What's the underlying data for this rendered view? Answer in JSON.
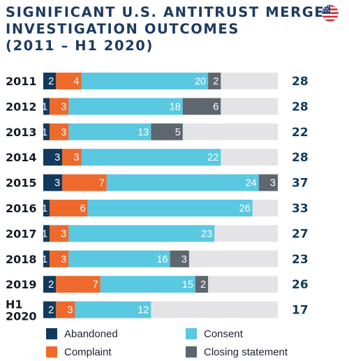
{
  "header": {
    "title_lines": [
      "SIGNIFICANT U.S. ANTITRUST MERGER",
      "INVESTIGATION OUTCOMES",
      "(2011 – H1 2020)"
    ],
    "flag_icon": "us-flag-icon"
  },
  "colors": {
    "abandoned": "#123a5c",
    "complaint": "#ee6a2c",
    "consent": "#5bc8e2",
    "closing": "#5e6670",
    "track": "#e4e4e6",
    "total_text": "#123a5c"
  },
  "chart_data": {
    "type": "bar",
    "orientation": "horizontal",
    "stacked": true,
    "title": "SIGNIFICANT U.S. ANTITRUST MERGER INVESTIGATION OUTCOMES (2011 – H1 2020)",
    "categories": [
      "2011",
      "2012",
      "2013",
      "2014",
      "2015",
      "2016",
      "2017",
      "2018",
      "2019",
      "H1 2020"
    ],
    "series": [
      {
        "name": "Abandoned",
        "key": "abandoned",
        "values": [
          2,
          1,
          1,
          3,
          3,
          1,
          1,
          1,
          2,
          2
        ]
      },
      {
        "name": "Complaint",
        "key": "complaint",
        "values": [
          4,
          3,
          3,
          3,
          7,
          6,
          3,
          3,
          7,
          3
        ]
      },
      {
        "name": "Consent",
        "key": "consent",
        "values": [
          20,
          18,
          13,
          22,
          24,
          26,
          23,
          16,
          15,
          12
        ]
      },
      {
        "name": "Closing statement",
        "key": "closing",
        "values": [
          2,
          6,
          5,
          0,
          3,
          0,
          0,
          3,
          2,
          0
        ]
      }
    ],
    "totals": [
      28,
      28,
      22,
      28,
      37,
      33,
      27,
      23,
      26,
      17
    ],
    "xlim": [
      0,
      37
    ],
    "legend_position": "bottom",
    "grid": false
  },
  "legend": {
    "items": [
      {
        "label": "Abandoned",
        "key": "abandoned"
      },
      {
        "label": "Consent",
        "key": "consent"
      },
      {
        "label": "Complaint",
        "key": "complaint"
      },
      {
        "label": "Closing statement",
        "key": "closing"
      }
    ]
  }
}
